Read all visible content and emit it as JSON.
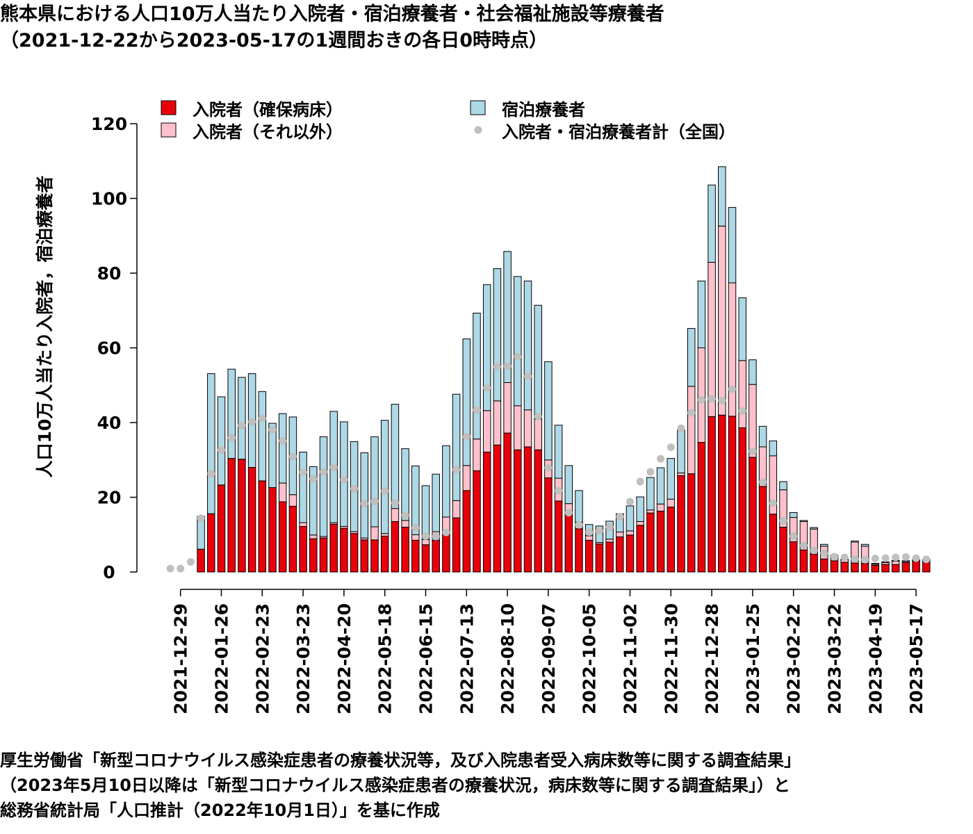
{
  "title": {
    "line1": "熊本県における人口10万人当たり入院者・宿泊療養者・社会福祉施設等療養者",
    "line2": "（2021-12-22から2023-05-17の1週間おきの各日0時時点）"
  },
  "source": {
    "line1": "厚生労働省「新型コロナウイルス感染症患者の療養状況等，及び入院患者受入病床数等に関する調査結果」",
    "line2": "（2023年5月10日以降は「新型コロナウイルス感染症患者の療養状況，病床数等に関する調査結果」）と",
    "line3": "総務省統計局「人口推計（2022年10月1日）」を基に作成"
  },
  "chart_data": {
    "type": "bar",
    "stacked": true,
    "ylabel": "人口10万人当たり入院者，宿泊療養者",
    "ylim": [
      0,
      120
    ],
    "yticks": [
      0,
      20,
      40,
      60,
      80,
      100,
      120
    ],
    "legend_position": "top",
    "x_tick_labels": [
      "2021-12-29",
      "2022-01-26",
      "2022-02-23",
      "2022-03-23",
      "2022-04-20",
      "2022-05-18",
      "2022-06-15",
      "2022-07-13",
      "2022-08-10",
      "2022-09-07",
      "2022-10-05",
      "2022-11-02",
      "2022-11-30",
      "2022-12-28",
      "2023-01-25",
      "2023-02-22",
      "2023-03-22",
      "2023-04-19",
      "2023-05-17"
    ],
    "x_tick_every": 4,
    "x_tick_start_index": 1,
    "series": [
      {
        "name": "入院者（確保病床）",
        "color": "#e8000b",
        "values": [
          0,
          0,
          0,
          6.1,
          15.6,
          23.3,
          30.4,
          30.2,
          28.0,
          24.4,
          22.6,
          18.8,
          17.6,
          12.2,
          8.9,
          9.1,
          12.8,
          11.7,
          10.3,
          8.6,
          8.6,
          9.6,
          13.5,
          12.0,
          8.5,
          7.3,
          8.5,
          10.5,
          14.5,
          21.8,
          27.1,
          32.1,
          34.0,
          37.2,
          32.7,
          33.5,
          32.7,
          25.2,
          19.0,
          15.3,
          11.6,
          8.5,
          7.5,
          8.0,
          9.4,
          9.9,
          12.5,
          15.8,
          16.3,
          17.4,
          25.8,
          26.3,
          34.7,
          41.6,
          42.0,
          41.7,
          38.6,
          30.7,
          22.9,
          15.5,
          12.0,
          8.1,
          5.9,
          4.8,
          3.5,
          3.0,
          2.6,
          2.4,
          2.3,
          1.8,
          2.0,
          2.0,
          2.5,
          2.8,
          2.6
        ]
      },
      {
        "name": "入院者（それ以外）",
        "color": "#ffc0cb",
        "values": [
          0,
          0,
          0,
          0,
          0,
          0,
          0,
          0,
          0,
          0,
          0,
          5.0,
          3.1,
          1.0,
          1.0,
          0.4,
          0.4,
          0.5,
          0.5,
          0.5,
          3.5,
          0.7,
          3.5,
          1.8,
          1.5,
          1.4,
          2.3,
          4.2,
          4.6,
          6.7,
          8.5,
          11.1,
          11.8,
          13.5,
          11.8,
          9.9,
          8.2,
          4.8,
          6.1,
          3.0,
          1.8,
          1.2,
          0.4,
          0.8,
          1.3,
          1.1,
          1.0,
          0.8,
          1.9,
          2.1,
          0.7,
          23.4,
          25.3,
          41.3,
          50.6,
          35.7,
          18.0,
          19.5,
          10.6,
          15.6,
          10.0,
          6.5,
          7.6,
          6.7,
          3.4,
          1.2,
          0.7,
          5.6,
          4.6,
          0.3,
          0.5,
          0.9,
          0.3,
          0.3,
          0.6
        ]
      },
      {
        "name": "宿泊療養者",
        "color": "#add8e6",
        "values": [
          0,
          0,
          0,
          8.8,
          37.5,
          23.6,
          23.9,
          21.9,
          25.1,
          23.9,
          17.2,
          18.6,
          20.8,
          18.9,
          18.3,
          26.7,
          29.8,
          28.0,
          24.1,
          22.8,
          24.1,
          30.3,
          27.9,
          19.2,
          18.4,
          14.4,
          15.4,
          19.1,
          28.5,
          33.9,
          33.7,
          33.7,
          35.4,
          35.1,
          34.6,
          34.5,
          30.5,
          26.3,
          14.2,
          10.2,
          8.4,
          3.0,
          4.4,
          4.8,
          4.9,
          6.7,
          6.6,
          8.7,
          9.7,
          10.9,
          11.5,
          15.5,
          17.9,
          20.7,
          15.9,
          20.2,
          16.8,
          6.6,
          5.5,
          4.0,
          2.2,
          1.3,
          0.3,
          0.4,
          0.5,
          0.3,
          0.1,
          0.3,
          0.5,
          0.2,
          0.2,
          0.2,
          0.2,
          0.2,
          0.2
        ]
      },
      {
        "name": "入院者・宿泊療養者計（全国）",
        "color": "#c0c0c0",
        "kind": "points",
        "values": [
          0.9,
          0.9,
          2.7,
          14.4,
          26.3,
          32.6,
          35.9,
          39.2,
          40.2,
          41.1,
          38.1,
          35.1,
          30.9,
          26.7,
          24.9,
          26.8,
          28.0,
          24.7,
          22.3,
          18.3,
          18.9,
          21.7,
          18.5,
          15.2,
          11.8,
          9.6,
          9.5,
          10.6,
          27.4,
          36.2,
          43.3,
          49.3,
          54.9,
          55.1,
          57.6,
          52.4,
          41.6,
          27.9,
          21.8,
          15.9,
          12.6,
          10.7,
          11.0,
          12.0,
          14.8,
          18.8,
          24.2,
          26.8,
          30.3,
          33.4,
          38.5,
          42.6,
          46.1,
          46.4,
          45.9,
          48.9,
          43.1,
          32.3,
          24.1,
          18.4,
          13.7,
          9.6,
          7.1,
          5.8,
          5.0,
          4.1,
          3.9,
          3.5,
          3.3,
          3.6,
          3.7,
          3.9,
          4.0,
          3.7,
          3.4
        ]
      }
    ]
  }
}
